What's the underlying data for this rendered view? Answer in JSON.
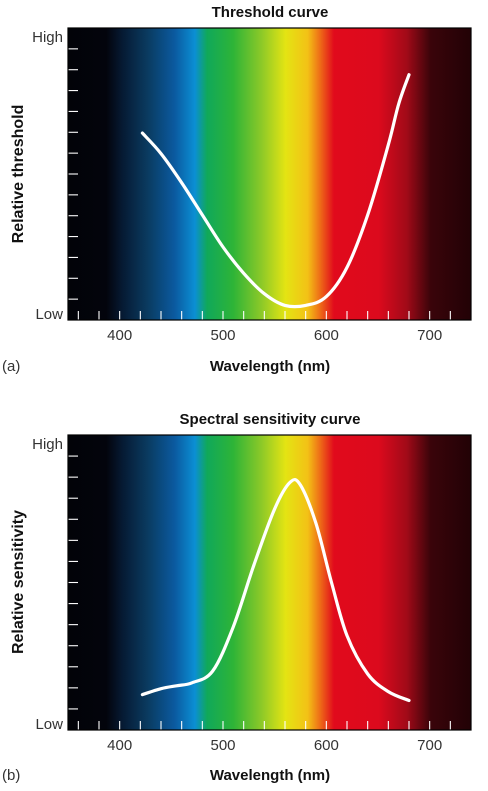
{
  "colors": {
    "curve": "#ffffff",
    "axis_frame": "#000000",
    "text": "#111111"
  },
  "chart_data": [
    {
      "panel_label": "(a)",
      "type": "line",
      "title": "Threshold curve",
      "xlabel": "Wavelength (nm)",
      "ylabel": "Relative threshold",
      "y_top_label": "High",
      "y_bottom_label": "Low",
      "xlim": [
        350,
        740
      ],
      "ylim": [
        0,
        1
      ],
      "xticks": [
        400,
        500,
        600,
        700
      ],
      "background": "visible spectrum gradient",
      "grid": false,
      "series": [
        {
          "x": [
            422,
            440,
            460,
            480,
            500,
            520,
            540,
            560,
            580,
            600,
            620,
            640,
            660,
            670,
            680
          ],
          "y": [
            0.64,
            0.57,
            0.47,
            0.36,
            0.25,
            0.16,
            0.09,
            0.05,
            0.05,
            0.08,
            0.18,
            0.36,
            0.6,
            0.74,
            0.84
          ]
        }
      ]
    },
    {
      "panel_label": "(b)",
      "type": "line",
      "title": "Spectral sensitivity curve",
      "xlabel": "Wavelength (nm)",
      "ylabel": "Relative sensitivity",
      "y_top_label": "High",
      "y_bottom_label": "Low",
      "xlim": [
        350,
        740
      ],
      "ylim": [
        0,
        1
      ],
      "xticks": [
        400,
        500,
        600,
        700
      ],
      "background": "visible spectrum gradient",
      "grid": false,
      "series": [
        {
          "x": [
            422,
            440,
            455,
            470,
            490,
            510,
            530,
            550,
            565,
            575,
            590,
            605,
            620,
            640,
            660,
            680
          ],
          "y": [
            0.12,
            0.14,
            0.15,
            0.16,
            0.2,
            0.35,
            0.56,
            0.75,
            0.84,
            0.83,
            0.7,
            0.5,
            0.32,
            0.19,
            0.13,
            0.1
          ]
        }
      ]
    }
  ]
}
